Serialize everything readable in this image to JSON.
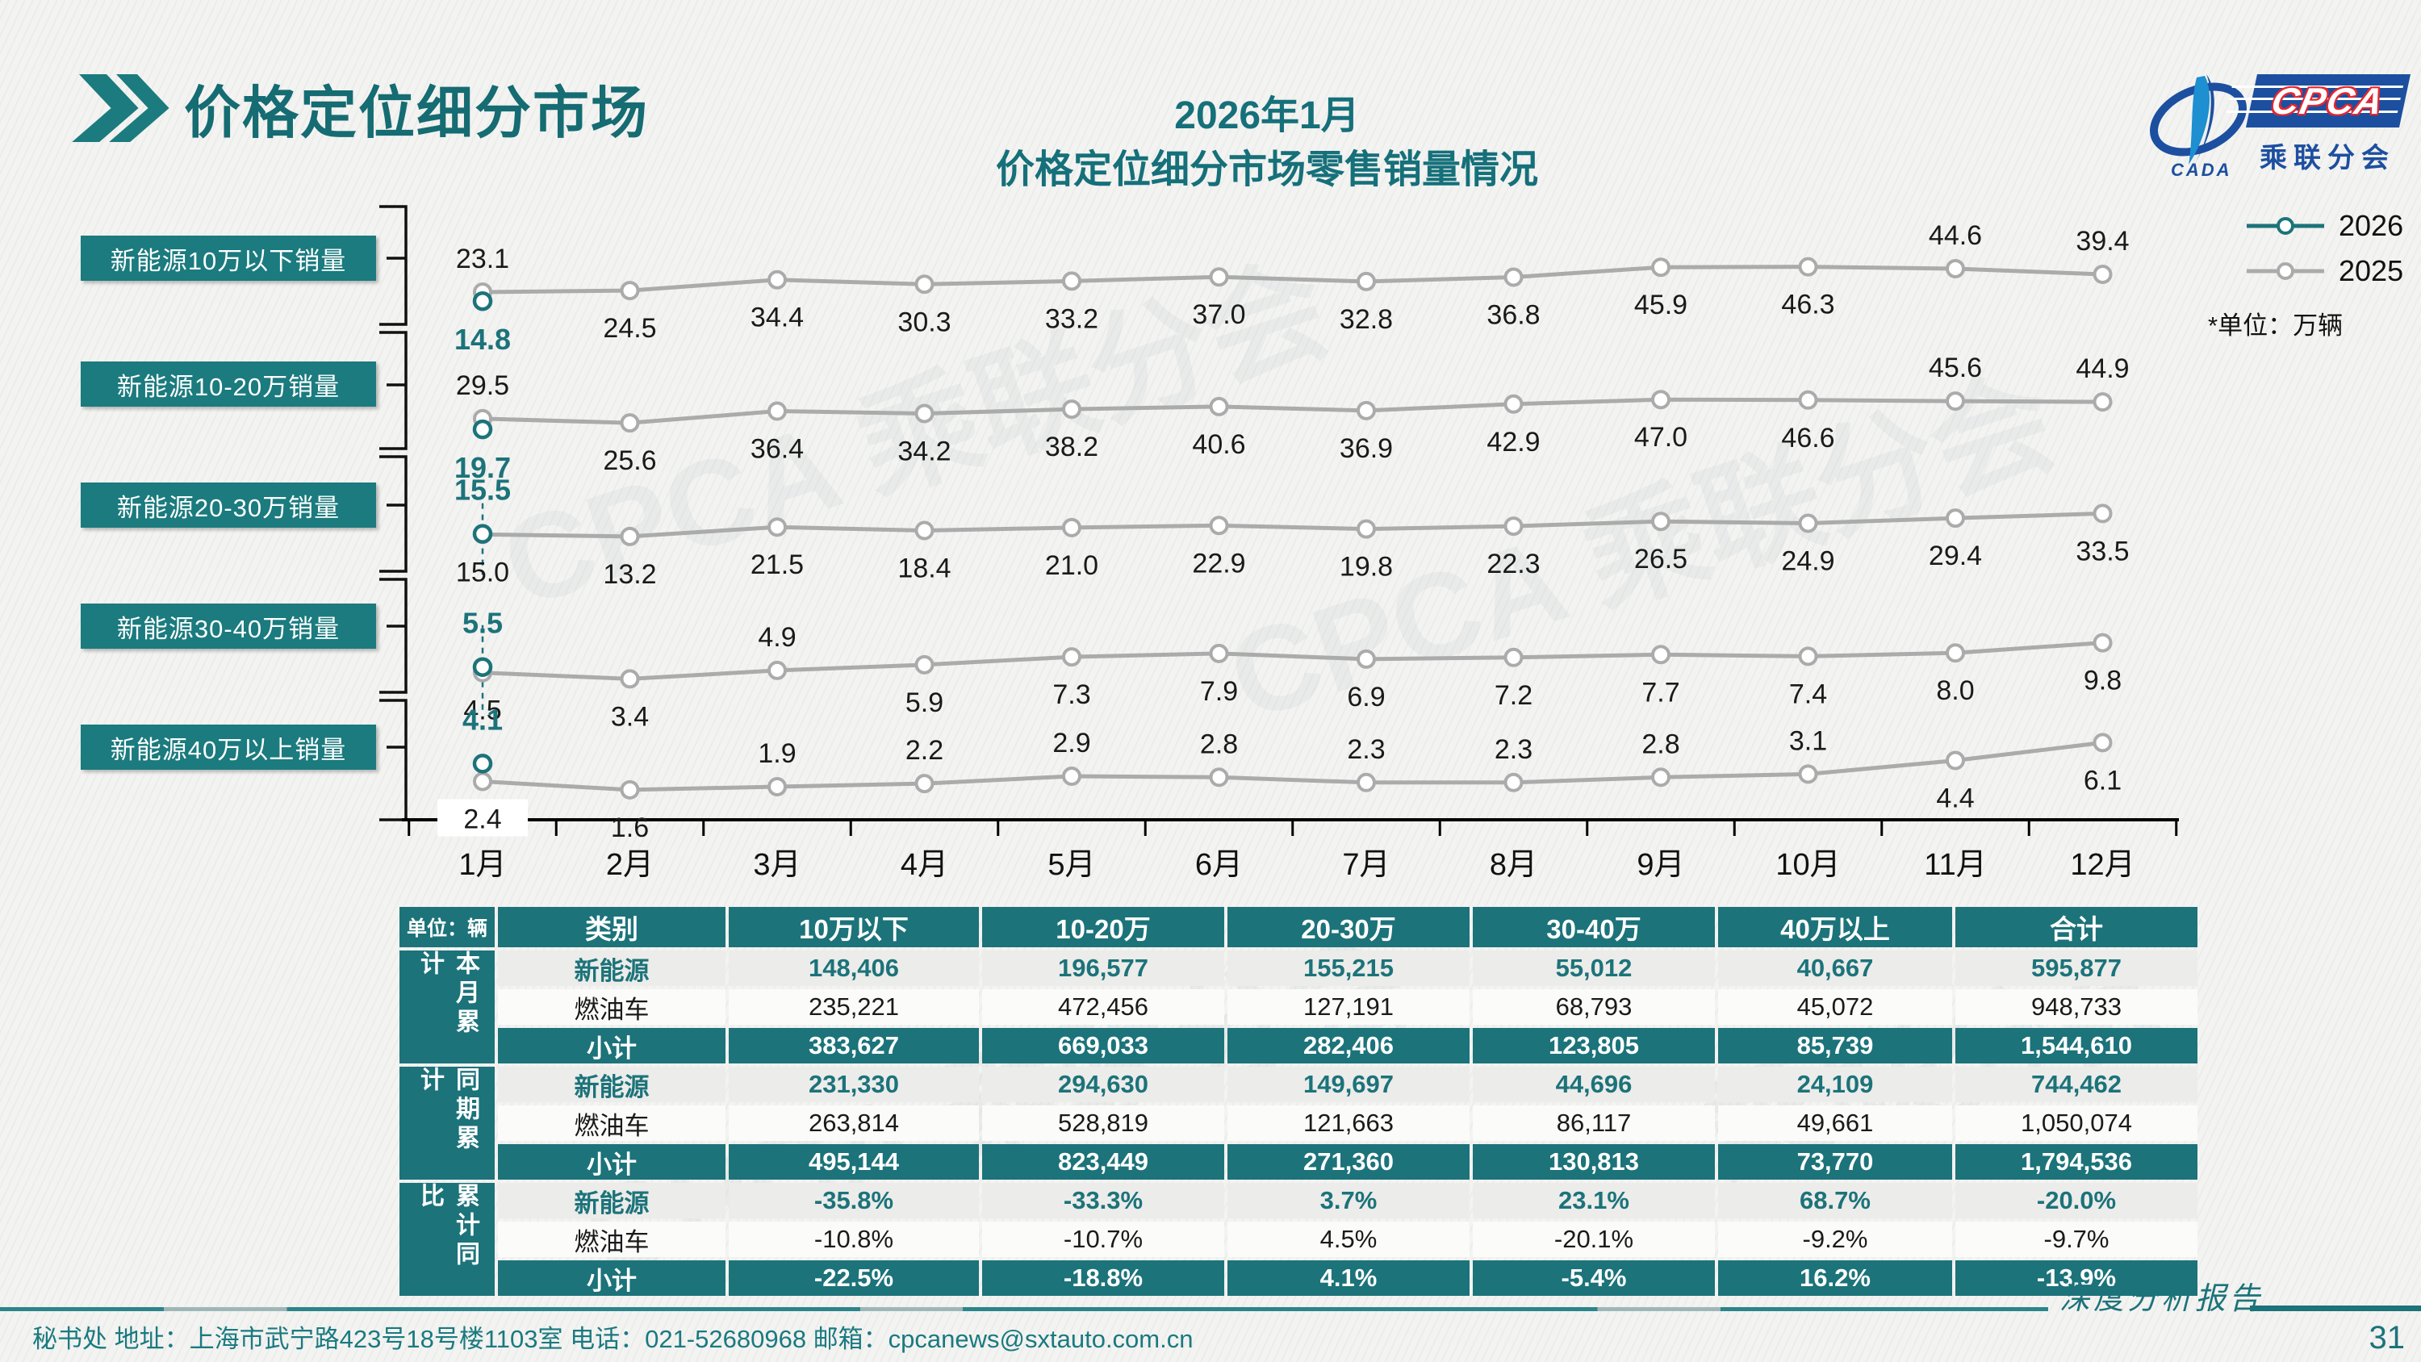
{
  "page": {
    "title": "价格定位细分市场",
    "page_number": "31",
    "report_tagline": "深度分析报告",
    "footer": "秘书处  地址：上海市武宁路423号18号楼1103室 电话：021-52680968  邮箱：cpcanews@sxtauto.com.cn"
  },
  "subtitle": {
    "line1": "2026年1月",
    "line2": "价格定位细分市场零售销量情况"
  },
  "logo": {
    "cpca": "CPCA",
    "sub": "乘联分会",
    "cada": "CADA"
  },
  "legend": {
    "items": [
      {
        "label": "2026",
        "color": "#1C737A"
      },
      {
        "label": "2025",
        "color": "#ABABAB"
      }
    ],
    "unit_note": "*单位：万辆"
  },
  "side_labels": [
    "新能源10万以下销量",
    "新能源10-20万销量",
    "新能源20-30万销量",
    "新能源30-40万销量",
    "新能源40万以上销量"
  ],
  "chart_data": {
    "type": "line",
    "title": "2026年1月 价格定位细分市场零售销量情况",
    "unit": "万辆",
    "x": [
      "1月",
      "2月",
      "3月",
      "4月",
      "5月",
      "6月",
      "7月",
      "8月",
      "9月",
      "10月",
      "11月",
      "12月"
    ],
    "legend_entries": [
      "2026",
      "2025"
    ],
    "grid": false,
    "legend_position": "top-right",
    "series_bands": [
      {
        "name": "新能源10万以下销量",
        "y2025": [
          23.1,
          24.5,
          34.4,
          30.3,
          33.2,
          37.0,
          32.8,
          36.8,
          45.9,
          46.3,
          44.6,
          39.4
        ],
        "y2026_jan": 14.8,
        "label_pos_2025": [
          "above",
          "below",
          "below",
          "below",
          "below",
          "below",
          "below",
          "below",
          "below",
          "below",
          "above",
          "above"
        ],
        "label_pos_2026": "below"
      },
      {
        "name": "新能源10-20万销量",
        "y2025": [
          29.5,
          25.6,
          36.4,
          34.2,
          38.2,
          40.6,
          36.9,
          42.9,
          47.0,
          46.6,
          45.6,
          44.9
        ],
        "y2026_jan": 19.7,
        "label_pos_2025": [
          "above",
          "below",
          "below",
          "below",
          "below",
          "below",
          "below",
          "below",
          "below",
          "below",
          "above",
          "above"
        ],
        "label_pos_2026": "below"
      },
      {
        "name": "新能源20-30万销量",
        "y2025": [
          15.0,
          13.2,
          21.5,
          18.4,
          21.0,
          22.9,
          19.8,
          22.3,
          26.5,
          24.9,
          29.4,
          33.5
        ],
        "y2026_jan": 15.5,
        "label_pos_2025": [
          "below",
          "below",
          "below",
          "below",
          "below",
          "below",
          "below",
          "below",
          "below",
          "below",
          "below",
          "below"
        ],
        "label_pos_2026": "above"
      },
      {
        "name": "新能源30-40万销量",
        "y2025": [
          4.5,
          3.4,
          4.9,
          5.9,
          7.3,
          7.9,
          6.9,
          7.2,
          7.7,
          7.4,
          8.0,
          9.8
        ],
        "y2026_jan": 5.5,
        "label_pos_2025": [
          "below",
          "below",
          "above",
          "below",
          "below",
          "below",
          "below",
          "below",
          "below",
          "below",
          "below",
          "below"
        ],
        "label_pos_2026": "above"
      },
      {
        "name": "新能源40万以上销量",
        "y2025": [
          2.4,
          1.6,
          1.9,
          2.2,
          2.9,
          2.8,
          2.3,
          2.3,
          2.8,
          3.1,
          4.4,
          6.1
        ],
        "y2026_jan": 4.1,
        "label_pos_2025": [
          "below",
          "below",
          "above",
          "above",
          "above",
          "above",
          "above",
          "above",
          "above",
          "above",
          "below",
          "below"
        ],
        "label_pos_2026": "above"
      }
    ]
  },
  "table": {
    "unit_label": "单位：辆",
    "col_headers": [
      "类别",
      "10万以下",
      "10-20万",
      "20-30万",
      "30-40万",
      "40万以上",
      "合计"
    ],
    "groups": [
      {
        "label": "本月累计",
        "rows": [
          {
            "label": "新能源",
            "values": [
              "148,406",
              "196,577",
              "155,215",
              "55,012",
              "40,667",
              "595,877"
            ]
          },
          {
            "label": "燃油车",
            "values": [
              "235,221",
              "472,456",
              "127,191",
              "68,793",
              "45,072",
              "948,733"
            ]
          },
          {
            "label": "小计",
            "values": [
              "383,627",
              "669,033",
              "282,406",
              "123,805",
              "85,739",
              "1,544,610"
            ]
          }
        ]
      },
      {
        "label": "同期累计",
        "rows": [
          {
            "label": "新能源",
            "values": [
              "231,330",
              "294,630",
              "149,697",
              "44,696",
              "24,109",
              "744,462"
            ]
          },
          {
            "label": "燃油车",
            "values": [
              "263,814",
              "528,819",
              "121,663",
              "86,117",
              "49,661",
              "1,050,074"
            ]
          },
          {
            "label": "小计",
            "values": [
              "495,144",
              "823,449",
              "271,360",
              "130,813",
              "73,770",
              "1,794,536"
            ]
          }
        ]
      },
      {
        "label": "累计同比",
        "rows": [
          {
            "label": "新能源",
            "values": [
              "-35.8%",
              "-33.3%",
              "3.7%",
              "23.1%",
              "68.7%",
              "-20.0%"
            ]
          },
          {
            "label": "燃油车",
            "values": [
              "-10.8%",
              "-10.7%",
              "4.5%",
              "-20.1%",
              "-9.2%",
              "-9.7%"
            ]
          },
          {
            "label": "小计",
            "values": [
              "-22.5%",
              "-18.8%",
              "4.1%",
              "-5.4%",
              "16.2%",
              "-13.9%"
            ]
          }
        ]
      }
    ]
  },
  "colors": {
    "teal": "#1C737A",
    "teal_title": "#156C72",
    "gray_line": "#ABABAB",
    "logo_blue": "#1C4FA0",
    "logo_red": "#E8262D"
  }
}
